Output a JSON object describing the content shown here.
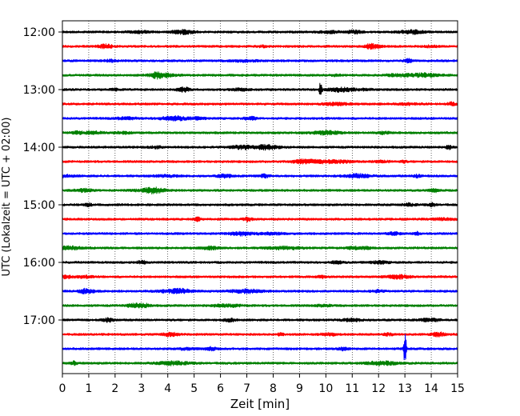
{
  "chart_data": {
    "type": "line",
    "title": "",
    "xlabel": "Zeit  [min]",
    "ylabel": "UTC (Lokalzeit = UTC + 02:00)",
    "xlim": [
      0,
      15
    ],
    "x_ticks": [
      0,
      1,
      2,
      3,
      4,
      5,
      6,
      7,
      8,
      9,
      10,
      11,
      12,
      13,
      14,
      15
    ],
    "y_tick_labels": [
      "12:00",
      "13:00",
      "14:00",
      "15:00",
      "16:00",
      "17:00"
    ],
    "grid": "vertical dotted",
    "trace_interval_minutes": 15,
    "start_time": "12:00",
    "trace_count": 24,
    "color_cycle": [
      "#000000",
      "#ff0000",
      "#0000ff",
      "#008000"
    ],
    "events": [
      {
        "trace_time": "13:00",
        "x": 9.8,
        "peak_amplitude": "moderate"
      },
      {
        "trace_time": "17:30",
        "x": 13.0,
        "peak_amplitude": "large"
      }
    ]
  }
}
